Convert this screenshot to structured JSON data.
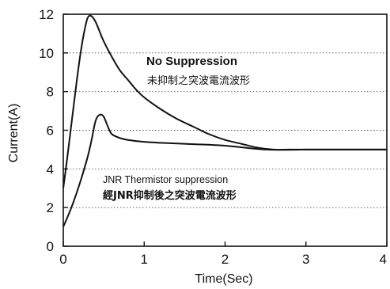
{
  "chart_data": {
    "type": "line",
    "xlabel": "Time(Sec)",
    "ylabel": "Current(A)",
    "xlim": [
      0,
      4
    ],
    "ylim": [
      0,
      12
    ],
    "xticks": [
      "0",
      "1",
      "2",
      "3",
      "4"
    ],
    "yticks": [
      "0",
      "2",
      "4",
      "6",
      "8",
      "10",
      "12"
    ],
    "grid": "horizontal dotted",
    "annotations": [
      {
        "id": "no_supp_en",
        "text": "No Suppression"
      },
      {
        "id": "no_supp_cn",
        "text": "未抑制之突波電流波形"
      },
      {
        "id": "jnr_en",
        "text": "JNR Thermistor suppression"
      },
      {
        "id": "jnr_cn",
        "text": "經JNR抑制後之突波電流波形"
      }
    ],
    "series": [
      {
        "x": [
          0,
          0.05,
          0.1,
          0.15,
          0.2,
          0.25,
          0.3,
          0.35,
          0.4,
          0.45,
          0.5,
          0.6,
          0.7,
          0.8,
          0.9,
          1.0,
          1.2,
          1.4,
          1.6,
          1.8,
          2.0,
          2.2,
          2.4,
          2.6,
          2.8,
          3.0,
          3.5,
          4.0
        ],
        "y": [
          3.0,
          4.6,
          6.3,
          8.0,
          9.6,
          10.9,
          11.8,
          11.9,
          11.6,
          11.1,
          10.6,
          9.8,
          9.1,
          8.6,
          8.1,
          7.7,
          7.1,
          6.6,
          6.2,
          5.8,
          5.5,
          5.3,
          5.1,
          5.0,
          5.0,
          5.0,
          5.0,
          5.0
        ]
      },
      {
        "x": [
          0,
          0.1,
          0.2,
          0.3,
          0.35,
          0.4,
          0.45,
          0.5,
          0.55,
          0.6,
          0.7,
          0.8,
          1.0,
          1.2,
          1.5,
          2.0,
          2.5,
          3.0,
          3.5,
          4.0
        ],
        "y": [
          1.0,
          2.0,
          3.2,
          4.6,
          5.5,
          6.5,
          6.8,
          6.7,
          6.2,
          5.8,
          5.6,
          5.5,
          5.4,
          5.35,
          5.3,
          5.2,
          5.0,
          5.0,
          5.0,
          5.0
        ]
      }
    ]
  }
}
